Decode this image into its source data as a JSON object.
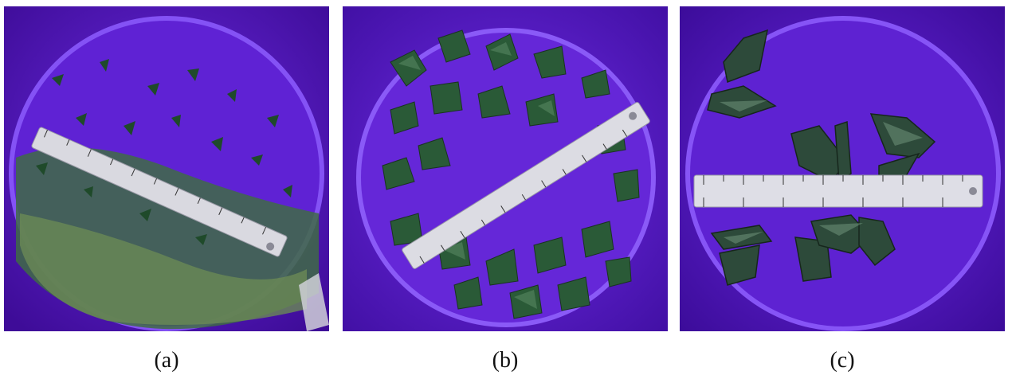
{
  "figure": {
    "panels": [
      {
        "id": "a",
        "caption": "(a)",
        "content": "fine-glass-fragments"
      },
      {
        "id": "b",
        "caption": "(b)",
        "content": "medium-glass-fragments"
      },
      {
        "id": "c",
        "caption": "(c)",
        "content": "large-glass-fragments"
      }
    ]
  },
  "colors": {
    "bucket_purple": "#5a18c8",
    "bucket_rim": "#7b3ff0",
    "glass_green": "#2f6b3a",
    "glass_dark": "#1d3a26",
    "ruler_steel": "#d9d9e0"
  }
}
